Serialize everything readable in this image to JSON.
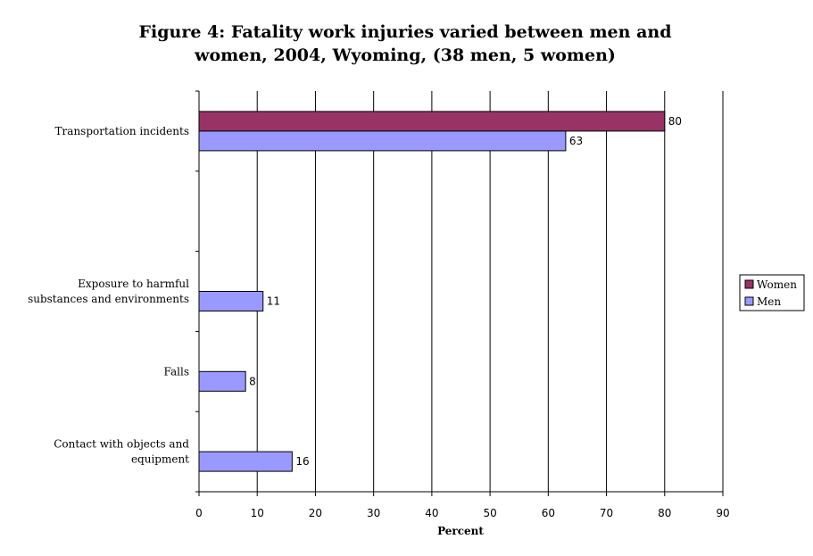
{
  "chart_data": {
    "type": "bar",
    "orientation": "horizontal",
    "title_lines": [
      "Figure 4: Fatality work injuries varied between men and",
      "women, 2004, Wyoming,  (38 men, 5 women)"
    ],
    "xlabel": "Percent",
    "xlim": [
      0,
      90
    ],
    "xticks": [
      0,
      10,
      20,
      30,
      40,
      50,
      60,
      70,
      80,
      90
    ],
    "grid": "vertical",
    "legend_position": "right",
    "category_slots": 5,
    "categories": [
      {
        "lines": [
          "Transportation incidents"
        ],
        "slot": 0
      },
      {
        "lines": [
          "Exposure to harmful",
          "substances and environments"
        ],
        "slot": 2
      },
      {
        "lines": [
          "Falls"
        ],
        "slot": 3
      },
      {
        "lines": [
          "Contact with objects and",
          "equipment"
        ],
        "slot": 4
      }
    ],
    "series": [
      {
        "name": "Women",
        "color": "#993366",
        "values": [
          80,
          null,
          null,
          null
        ]
      },
      {
        "name": "Men",
        "color": "#9999ff",
        "values": [
          63,
          11,
          8,
          16
        ]
      }
    ]
  }
}
